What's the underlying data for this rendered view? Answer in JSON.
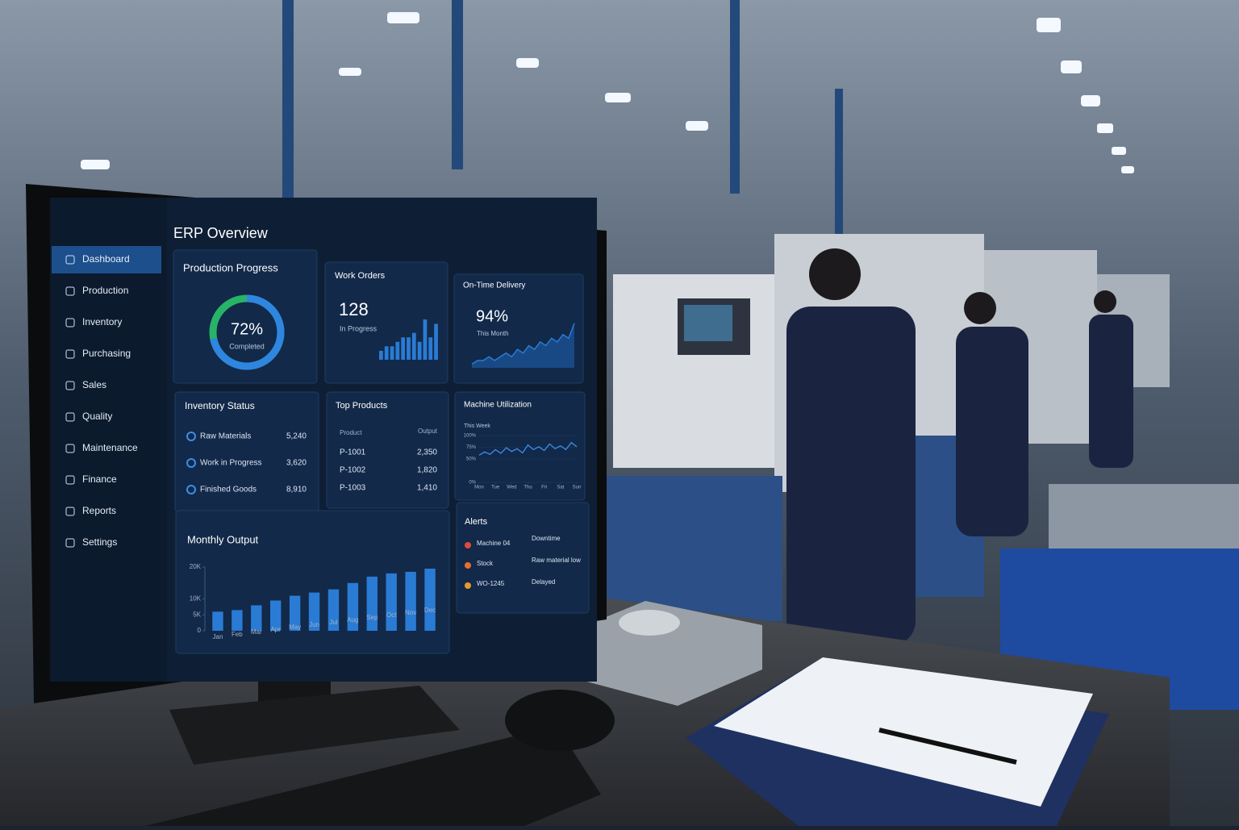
{
  "screen": {
    "title": "ERP Overview",
    "nav": [
      "Dashboard",
      "Production",
      "Inventory",
      "Purchasing",
      "Sales",
      "Quality",
      "Maintenance",
      "Finance",
      "Reports",
      "Settings"
    ],
    "inventory": {
      "title": "Inventory Status",
      "rows": [
        [
          "Raw Materials",
          "5,240"
        ],
        [
          "Work in Progress",
          "3,620"
        ],
        [
          "Finished Goods",
          "8,910"
        ]
      ]
    },
    "products": {
      "title": "Top Products",
      "header": [
        "Product",
        "Output"
      ],
      "rows": [
        [
          "P-1001",
          "2,350"
        ],
        [
          "P-1002",
          "1,820"
        ],
        [
          "P-1003",
          "1,410"
        ]
      ]
    },
    "alerts": {
      "title": "Alerts",
      "rows": [
        [
          "Machine 04",
          "Downtime"
        ],
        [
          "Stock",
          "Raw material low"
        ],
        [
          "WO-1245",
          "Delayed"
        ]
      ]
    }
  },
  "chart_data": [
    {
      "type": "donut",
      "title": "Production Progress",
      "values": [
        72
      ],
      "value_labels": [
        "72%"
      ],
      "caption": "Completed",
      "colors": [
        "#2f86e0",
        "#27b466"
      ]
    },
    {
      "type": "bar",
      "title": "Work Orders",
      "kpi": "128",
      "kpi_label": "In Progress",
      "values": [
        2,
        3,
        3,
        4,
        5,
        5,
        6,
        4,
        9,
        5,
        8
      ],
      "color": "#2a7bd4"
    },
    {
      "type": "area",
      "title": "On-Time Delivery",
      "kpi": "94%",
      "kpi_label": "This Month",
      "values": [
        1,
        2,
        2,
        3,
        2,
        3,
        4,
        3,
        5,
        4,
        6,
        5,
        7,
        6,
        8,
        7,
        9,
        8,
        12
      ],
      "color": "#2a7bd4"
    },
    {
      "type": "line",
      "title": "Machine Utilization",
      "subtitle": "This Week",
      "x": [
        0,
        0.33,
        0.67,
        1,
        1.33,
        1.67,
        2,
        2.33,
        2.67,
        3,
        3.33,
        3.67,
        4,
        4.33,
        4.67,
        5,
        5.33,
        5.67,
        6
      ],
      "values": [
        58,
        65,
        60,
        70,
        62,
        74,
        66,
        72,
        63,
        80,
        70,
        76,
        68,
        82,
        72,
        78,
        70,
        85,
        76
      ],
      "xlim": [
        0,
        6
      ],
      "xticks": [
        {
          "value": 0,
          "label": "Mon"
        },
        {
          "value": 1,
          "label": "Tue"
        },
        {
          "value": 2,
          "label": "Wed"
        },
        {
          "value": 3,
          "label": "Thu"
        },
        {
          "value": 4,
          "label": "Fri"
        },
        {
          "value": 5,
          "label": "Sat"
        },
        {
          "value": 6,
          "label": "Sun"
        }
      ],
      "ylim": [
        0,
        100
      ],
      "yticks": [
        {
          "value": 0,
          "label": "0%"
        },
        {
          "value": 50,
          "label": "50%"
        },
        {
          "value": 75,
          "label": "75%"
        },
        {
          "value": 100,
          "label": "100%"
        }
      ],
      "color": "#3b8fe8"
    },
    {
      "type": "bar",
      "title": "Monthly Output",
      "categories": [
        "Jan",
        "Feb",
        "Mar",
        "Apr",
        "May",
        "Jun",
        "Jul",
        "Aug",
        "Sep",
        "Oct",
        "Nov",
        "Dec"
      ],
      "values": [
        6000,
        6500,
        8000,
        9500,
        11000,
        12000,
        13000,
        15000,
        17000,
        18000,
        18500,
        19500
      ],
      "ylim": [
        0,
        20000
      ],
      "yticks": [
        0,
        {
          "value": 5000,
          "label": "5K"
        },
        {
          "value": 10000,
          "label": "10K"
        },
        {
          "value": 20000,
          "label": "20K"
        }
      ],
      "color": "#2a7bd4"
    }
  ]
}
